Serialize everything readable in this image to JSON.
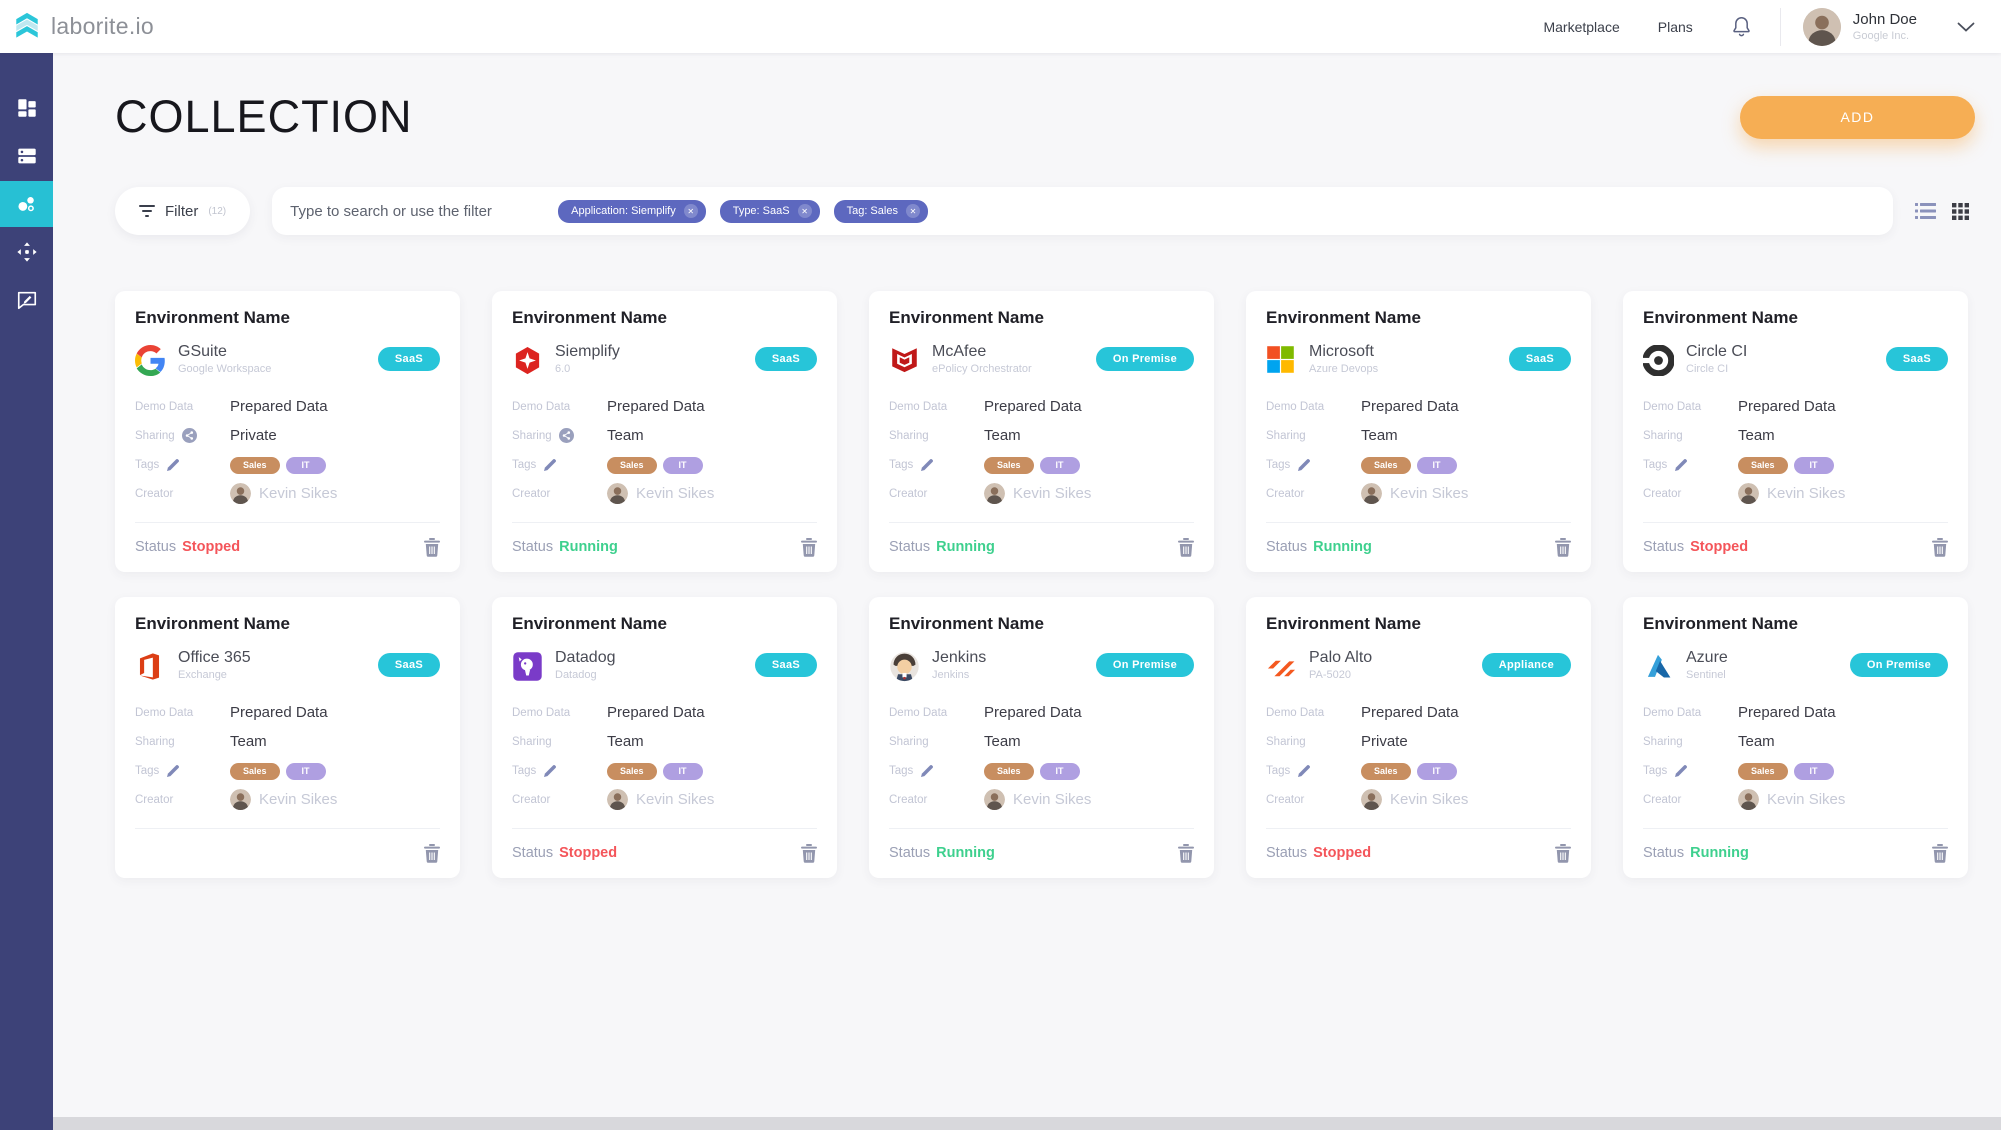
{
  "brand": {
    "name": "laborite.io"
  },
  "header": {
    "nav": [
      {
        "label": "Marketplace"
      },
      {
        "label": "Plans"
      }
    ],
    "user": {
      "name": "John Doe",
      "org": "Google Inc."
    }
  },
  "sidebar": {
    "items": [
      {
        "name": "dashboard",
        "icon": "dashboard-icon",
        "active": false
      },
      {
        "name": "servers",
        "icon": "servers-icon",
        "active": false
      },
      {
        "name": "collections",
        "icon": "bubbles-icon",
        "active": true
      },
      {
        "name": "apps",
        "icon": "move-icon",
        "active": false
      },
      {
        "name": "feedback",
        "icon": "feedback-icon",
        "active": false
      }
    ]
  },
  "page": {
    "title": "COLLECTION",
    "add_label": "ADD"
  },
  "filterbar": {
    "filter_label": "Filter",
    "filter_count": "(12)",
    "search_placeholder": "Type to search or use the filter",
    "chips": [
      {
        "label": "Application: Siemplify"
      },
      {
        "label": "Type: SaaS"
      },
      {
        "label": "Tag: Sales"
      }
    ]
  },
  "colors": {
    "accent_cyan": "#27c5d9",
    "accent_orange": "#f6ae54",
    "sidebar_bg": "#3d4278",
    "chip_indigo": "#5d68bf",
    "tag_sales": "#c88e60",
    "tag_it": "#af9fe1",
    "status_running": "#3ed08e",
    "status_stopped": "#f4555a"
  },
  "cards": [
    {
      "title": "Environment Name",
      "app": "GSuite",
      "app_sub": "Google Workspace",
      "app_icon": "gsuite",
      "badge": "SaaS",
      "demo_data_label": "Demo Data",
      "demo_data": "Prepared Data",
      "sharing_label": "Sharing",
      "sharing": "Private",
      "sharing_icon": true,
      "tags_label": "Tags",
      "tags": [
        "Sales",
        "IT"
      ],
      "creator_label": "Creator",
      "creator": "Kevin Sikes",
      "status_label": "Status",
      "status": "Stopped"
    },
    {
      "title": "Environment Name",
      "app": "Siemplify",
      "app_sub": "6.0",
      "app_icon": "siemplify",
      "badge": "SaaS",
      "demo_data_label": "Demo Data",
      "demo_data": "Prepared Data",
      "sharing_label": "Sharing",
      "sharing": "Team",
      "sharing_icon": true,
      "tags_label": "Tags",
      "tags": [
        "Sales",
        "IT"
      ],
      "creator_label": "Creator",
      "creator": "Kevin Sikes",
      "status_label": "Status",
      "status": "Running"
    },
    {
      "title": "Environment Name",
      "app": "McAfee",
      "app_sub": "ePolicy Orchestrator",
      "app_icon": "mcafee",
      "badge": "On Premise",
      "demo_data_label": "Demo Data",
      "demo_data": "Prepared Data",
      "sharing_label": "Sharing",
      "sharing": "Team",
      "sharing_icon": false,
      "tags_label": "Tags",
      "tags": [
        "Sales",
        "IT"
      ],
      "creator_label": "Creator",
      "creator": "Kevin Sikes",
      "status_label": "Status",
      "status": "Running"
    },
    {
      "title": "Environment Name",
      "app": "Microsoft",
      "app_sub": "Azure Devops",
      "app_icon": "microsoft",
      "badge": "SaaS",
      "demo_data_label": "Demo Data",
      "demo_data": "Prepared Data",
      "sharing_label": "Sharing",
      "sharing": "Team",
      "sharing_icon": false,
      "tags_label": "Tags",
      "tags": [
        "Sales",
        "IT"
      ],
      "creator_label": "Creator",
      "creator": "Kevin Sikes",
      "status_label": "Status",
      "status": "Running"
    },
    {
      "title": "Environment Name",
      "app": "Circle CI",
      "app_sub": "Circle CI",
      "app_icon": "circleci",
      "badge": "SaaS",
      "demo_data_label": "Demo Data",
      "demo_data": "Prepared Data",
      "sharing_label": "Sharing",
      "sharing": "Team",
      "sharing_icon": false,
      "tags_label": "Tags",
      "tags": [
        "Sales",
        "IT"
      ],
      "creator_label": "Creator",
      "creator": "Kevin Sikes",
      "status_label": "Status",
      "status": "Stopped"
    },
    {
      "title": "Environment Name",
      "app": "Office 365",
      "app_sub": "Exchange",
      "app_icon": "office365",
      "badge": "SaaS",
      "demo_data_label": "Demo Data",
      "demo_data": "Prepared Data",
      "sharing_label": "Sharing",
      "sharing": "Team",
      "sharing_icon": false,
      "tags_label": "Tags",
      "tags": [
        "Sales",
        "IT"
      ],
      "creator_label": "Creator",
      "creator": "Kevin Sikes",
      "status_label": "",
      "status": ""
    },
    {
      "title": "Environment Name",
      "app": "Datadog",
      "app_sub": "Datadog",
      "app_icon": "datadog",
      "badge": "SaaS",
      "demo_data_label": "Demo Data",
      "demo_data": "Prepared Data",
      "sharing_label": "Sharing",
      "sharing": "Team",
      "sharing_icon": false,
      "tags_label": "Tags",
      "tags": [
        "Sales",
        "IT"
      ],
      "creator_label": "Creator",
      "creator": "Kevin Sikes",
      "status_label": "Status",
      "status": "Stopped"
    },
    {
      "title": "Environment Name",
      "app": "Jenkins",
      "app_sub": "Jenkins",
      "app_icon": "jenkins",
      "badge": "On Premise",
      "demo_data_label": "Demo Data",
      "demo_data": "Prepared Data",
      "sharing_label": "Sharing",
      "sharing": "Team",
      "sharing_icon": false,
      "tags_label": "Tags",
      "tags": [
        "Sales",
        "IT"
      ],
      "creator_label": "Creator",
      "creator": "Kevin Sikes",
      "status_label": "Status",
      "status": "Running"
    },
    {
      "title": "Environment Name",
      "app": "Palo Alto",
      "app_sub": "PA-5020",
      "app_icon": "paloalto",
      "badge": "Appliance",
      "demo_data_label": "Demo Data",
      "demo_data": "Prepared Data",
      "sharing_label": "Sharing",
      "sharing": "Private",
      "sharing_icon": false,
      "tags_label": "Tags",
      "tags": [
        "Sales",
        "IT"
      ],
      "creator_label": "Creator",
      "creator": "Kevin Sikes",
      "status_label": "Status",
      "status": "Stopped"
    },
    {
      "title": "Environment Name",
      "app": "Azure",
      "app_sub": "Sentinel",
      "app_icon": "azure",
      "badge": "On Premise",
      "demo_data_label": "Demo Data",
      "demo_data": "Prepared Data",
      "sharing_label": "Sharing",
      "sharing": "Team",
      "sharing_icon": false,
      "tags_label": "Tags",
      "tags": [
        "Sales",
        "IT"
      ],
      "creator_label": "Creator",
      "creator": "Kevin Sikes",
      "status_label": "Status",
      "status": "Running"
    }
  ]
}
